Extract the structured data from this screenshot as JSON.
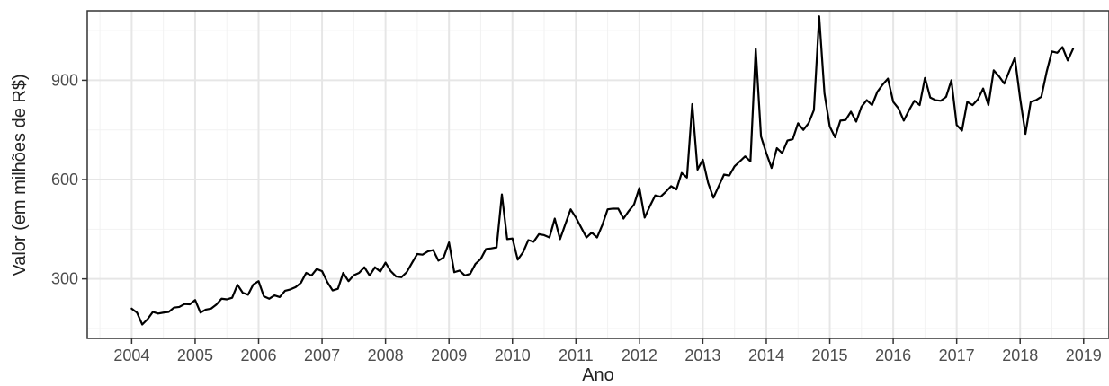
{
  "chart_data": {
    "type": "line",
    "title": "",
    "xlabel": "Ano",
    "ylabel": "Valor (em milhões de R$)",
    "xlim": [
      2003.3,
      2019.4
    ],
    "ylim": [
      120,
      1110
    ],
    "x_ticks": [
      2004,
      2005,
      2006,
      2007,
      2008,
      2009,
      2010,
      2011,
      2012,
      2013,
      2014,
      2015,
      2016,
      2017,
      2018,
      2019
    ],
    "x_tick_labels": [
      "2004",
      "2005",
      "2006",
      "2007",
      "2008",
      "2009",
      "2010",
      "2011",
      "2012",
      "2013",
      "2014",
      "2015",
      "2016",
      "2017",
      "2018",
      "2019"
    ],
    "y_ticks": [
      300,
      600,
      900
    ],
    "y_tick_labels": [
      "300",
      "600",
      "900"
    ],
    "grid": true,
    "series": [
      {
        "color": "#000000",
        "start": "2004-01",
        "frequency": "monthly",
        "values": [
          210,
          198,
          162,
          178,
          200,
          195,
          198,
          200,
          213,
          215,
          224,
          223,
          236,
          198,
          207,
          210,
          222,
          240,
          238,
          243,
          282,
          258,
          252,
          283,
          293,
          247,
          240,
          250,
          245,
          264,
          268,
          275,
          288,
          318,
          310,
          330,
          323,
          290,
          265,
          270,
          318,
          293,
          311,
          318,
          335,
          310,
          335,
          322,
          349,
          323,
          307,
          305,
          320,
          348,
          375,
          373,
          383,
          387,
          355,
          365,
          410,
          320,
          325,
          310,
          315,
          345,
          360,
          390,
          392,
          395,
          555,
          420,
          422,
          358,
          380,
          417,
          412,
          435,
          432,
          425,
          482,
          420,
          465,
          510,
          485,
          455,
          425,
          440,
          425,
          463,
          510,
          512,
          512,
          482,
          505,
          525,
          575,
          485,
          520,
          552,
          548,
          563,
          580,
          570,
          620,
          606,
          828,
          630,
          660,
          590,
          545,
          580,
          615,
          612,
          640,
          655,
          670,
          655,
          995,
          730,
          680,
          635,
          695,
          680,
          718,
          722,
          770,
          750,
          770,
          810,
          1093,
          860,
          760,
          728,
          778,
          780,
          805,
          775,
          820,
          840,
          825,
          865,
          887,
          905,
          835,
          815,
          778,
          810,
          838,
          825,
          907,
          848,
          840,
          838,
          850,
          900,
          765,
          748,
          835,
          825,
          842,
          875,
          825,
          930,
          912,
          890,
          930,
          968,
          845,
          738,
          835,
          840,
          850,
          925,
          987,
          983,
          1000,
          960,
          995
        ]
      }
    ]
  }
}
